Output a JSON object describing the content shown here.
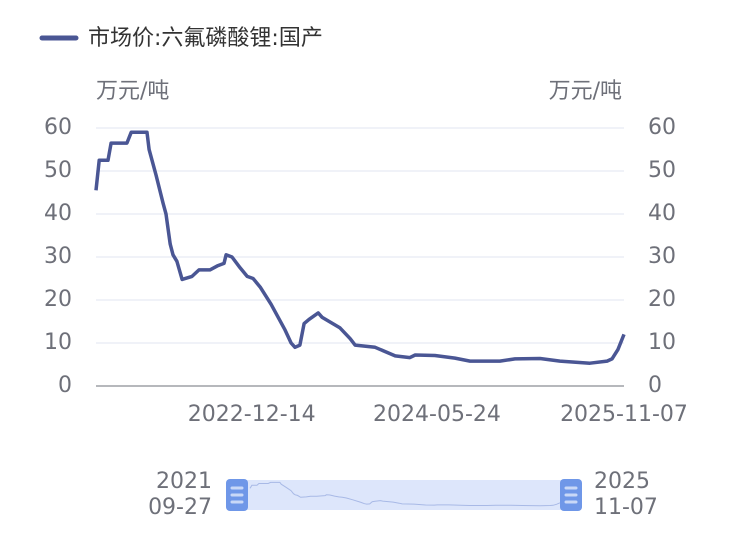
{
  "chart_data": {
    "type": "line",
    "ylabel": "万元/吨",
    "y2label": "万元/吨",
    "x": [
      "2021-09-27",
      "2021-10-06",
      "2021-10-31",
      "2021-11-09",
      "2021-12-24",
      "2022-01-05",
      "2022-02-19",
      "2022-02-25",
      "2022-03-17",
      "2022-04-06",
      "2022-04-14",
      "2022-04-26",
      "2022-05-04",
      "2022-05-15",
      "2022-05-30",
      "2022-06-27",
      "2022-07-17",
      "2022-08-17",
      "2022-09-09",
      "2022-09-26",
      "2022-10-02",
      "2022-10-19",
      "2022-11-11",
      "2022-12-01",
      "2022-12-18",
      "2023-01-07",
      "2023-02-07",
      "2023-03-19",
      "2023-04-05",
      "2023-04-16",
      "2023-04-30",
      "2023-05-12",
      "2023-05-26",
      "2023-06-21",
      "2023-07-02",
      "2023-08-22",
      "2023-09-20",
      "2023-10-04",
      "2023-11-30",
      "2024-01-26",
      "2024-03-08",
      "2024-03-23",
      "2024-05-18",
      "2024-07-14",
      "2024-08-26",
      "2024-11-19",
      "2025-01-01",
      "2025-03-13",
      "2025-05-09",
      "2025-08-02",
      "2025-09-20",
      "2025-10-04",
      "2025-10-21",
      "2025-11-07"
    ],
    "series": [
      {
        "name": "市场价:六氟磷酸锂:国产",
        "color": "#4a5694",
        "values": [
          45.5,
          52.5,
          52.5,
          56.5,
          56.5,
          59,
          59,
          55,
          49,
          42.5,
          40,
          33,
          30.5,
          29,
          24.8,
          25.5,
          27,
          27,
          28,
          28.5,
          30.5,
          30,
          27.5,
          25.5,
          25,
          23,
          19,
          13,
          10,
          9,
          9.5,
          14.5,
          15.5,
          17,
          16,
          13.5,
          11,
          9.5,
          9,
          7,
          6.6,
          7.2,
          7.1,
          6.5,
          5.8,
          5.8,
          6.3,
          6.4,
          5.8,
          5.3,
          5.8,
          6.3,
          8.5,
          12
        ]
      }
    ],
    "xlim": [
      "2021-09-27",
      "2025-11-07"
    ],
    "xticks": [
      "2022-12-14",
      "2024-05-24",
      "2025-11-07"
    ],
    "ylim": [
      0,
      60
    ],
    "yticks": [
      0,
      10,
      20,
      30,
      40,
      50,
      60
    ],
    "y2lim": [
      0,
      60
    ],
    "y2ticks": [
      0,
      10,
      20,
      30,
      40,
      50,
      60
    ],
    "grid": true,
    "datazoom": {
      "start_label": [
        "2021",
        "09-27"
      ],
      "end_label": [
        "2025",
        "11-07"
      ]
    }
  }
}
